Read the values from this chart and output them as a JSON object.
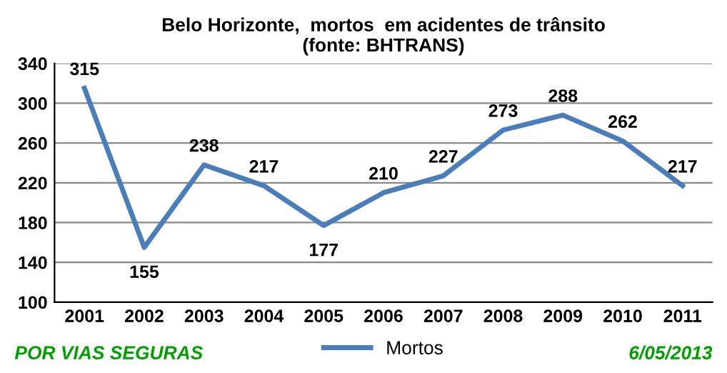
{
  "chart_data": {
    "type": "line",
    "title": "Belo Horizonte,  mortos  em acidentes de trânsito\n(fonte: BHTRANS)",
    "categories": [
      "2001",
      "2002",
      "2003",
      "2004",
      "2005",
      "2006",
      "2007",
      "2008",
      "2009",
      "2010",
      "2011"
    ],
    "series": [
      {
        "name": "Mortos",
        "color": "#4a7ebb",
        "values": [
          315,
          155,
          238,
          217,
          177,
          210,
          227,
          273,
          288,
          262,
          217
        ]
      }
    ],
    "ylim": [
      100,
      340
    ],
    "yticks": [
      100,
      140,
      180,
      220,
      260,
      300,
      340
    ],
    "grid": "y",
    "legend": "bottom",
    "data_labels": true,
    "marker": "none",
    "line_style": "solid",
    "annotations": [
      "POR VIAS SEGURAS",
      "6/05/2013"
    ]
  }
}
